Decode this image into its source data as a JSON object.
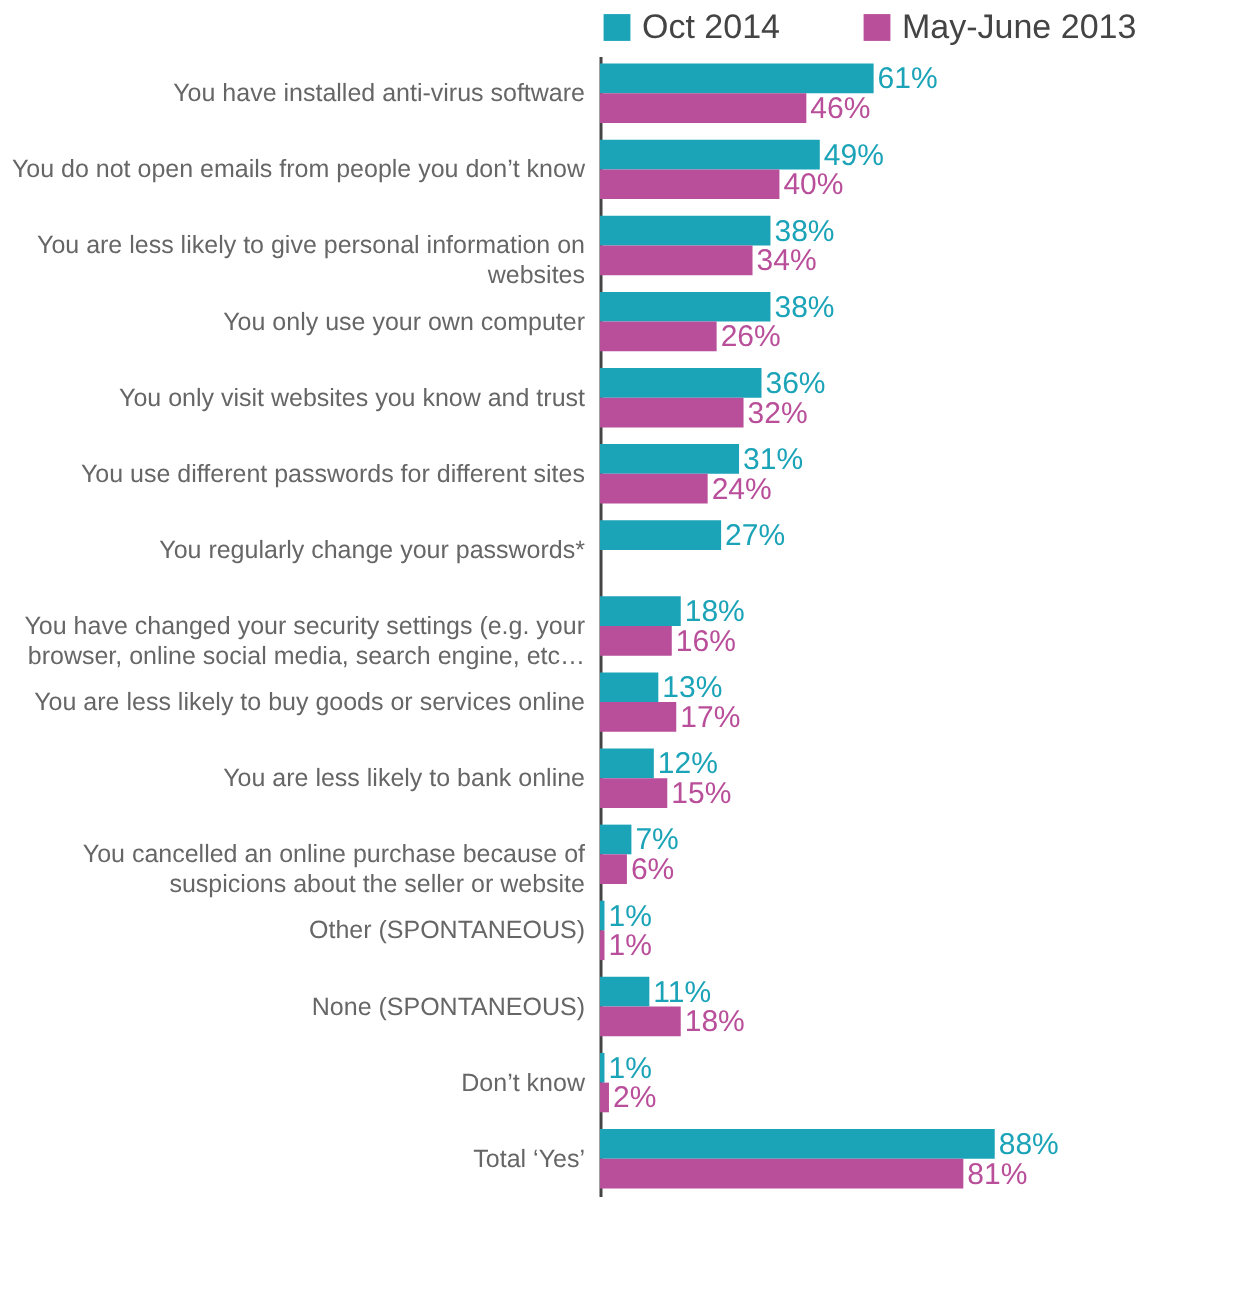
{
  "chart_data": {
    "type": "bar",
    "orientation": "horizontal",
    "legend": "top",
    "categories": [
      "You have installed anti-virus software",
      "You do not open emails from people you don’t know",
      "You are less likely to give personal information on websites",
      "You only use your own computer",
      "You only visit websites you know and trust",
      "You use different passwords for different sites",
      "You regularly change your passwords*",
      "You have changed your security settings (e.g. your browser, online social media, search engine, etc…",
      "You are less likely to buy goods or services online",
      "You are less likely to bank online",
      "You cancelled an online purchase because of suspicions about the seller or website",
      "Other (SPONTANEOUS)",
      "None (SPONTANEOUS)",
      "Don’t know",
      "Total ‘Yes’"
    ],
    "series": [
      {
        "name": "Oct 2014",
        "color": "#1ba3b8",
        "values": [
          61,
          49,
          38,
          38,
          36,
          31,
          27,
          18,
          13,
          12,
          7,
          1,
          11,
          1,
          88
        ],
        "value_labels": [
          "61%",
          "49%",
          "38%",
          "38%",
          "36%",
          "31%",
          "27%",
          "18%",
          "13%",
          "12%",
          "7%",
          "1%",
          "11%",
          "1%",
          "88%"
        ]
      },
      {
        "name": "May-June 2013",
        "color": "#b94f9a",
        "values": [
          46,
          40,
          34,
          26,
          32,
          24,
          null,
          16,
          17,
          15,
          6,
          1,
          18,
          2,
          81
        ],
        "value_labels": [
          "46%",
          "40%",
          "34%",
          "26%",
          "32%",
          "24%",
          null,
          "16%",
          "17%",
          "15%",
          "6%",
          "1%",
          "18%",
          "2%",
          "81%"
        ]
      }
    ]
  }
}
